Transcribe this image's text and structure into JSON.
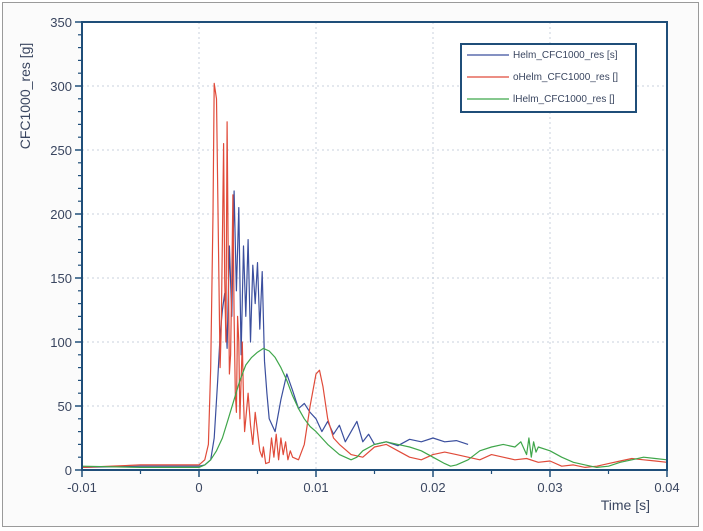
{
  "chart_data": {
    "type": "line",
    "xlabel": "Time [s]",
    "ylabel": "CFC1000_res [g]",
    "xlim": [
      -0.01,
      0.04
    ],
    "ylim": [
      0,
      350
    ],
    "x_ticks": [
      -0.01,
      0,
      0.01,
      0.02,
      0.03,
      0.04
    ],
    "x_tick_labels": [
      "-0.01",
      "0",
      "0.01",
      "0.02",
      "0.03",
      "0.04"
    ],
    "y_ticks": [
      0,
      50,
      100,
      150,
      200,
      250,
      300,
      350
    ],
    "y_tick_labels": [
      "0",
      "50",
      "100",
      "150",
      "200",
      "250",
      "300",
      "350"
    ],
    "grid": true,
    "legend_position": "top-right",
    "colors": {
      "axis": "#1f4e79",
      "grid": "#c8d2de",
      "text": "#3a4660"
    },
    "series": [
      {
        "name": "Helm_CFC1000_res [s]",
        "color": "#3b4f9e",
        "points": [
          [
            -0.01,
            2
          ],
          [
            -0.005,
            3
          ],
          [
            0.0,
            3
          ],
          [
            0.0005,
            4
          ],
          [
            0.001,
            8
          ],
          [
            0.0013,
            25
          ],
          [
            0.0016,
            70
          ],
          [
            0.0018,
            105
          ],
          [
            0.002,
            125
          ],
          [
            0.0022,
            138
          ],
          [
            0.0024,
            95
          ],
          [
            0.0026,
            175
          ],
          [
            0.0028,
            120
          ],
          [
            0.003,
            218
          ],
          [
            0.0032,
            140
          ],
          [
            0.0034,
            205
          ],
          [
            0.0036,
            90
          ],
          [
            0.0038,
            175
          ],
          [
            0.004,
            120
          ],
          [
            0.0042,
            180
          ],
          [
            0.0044,
            100
          ],
          [
            0.0046,
            160
          ],
          [
            0.0048,
            130
          ],
          [
            0.005,
            162
          ],
          [
            0.0052,
            110
          ],
          [
            0.0054,
            155
          ],
          [
            0.0056,
            85
          ],
          [
            0.0058,
            60
          ],
          [
            0.006,
            40
          ],
          [
            0.0065,
            30
          ],
          [
            0.007,
            55
          ],
          [
            0.0075,
            75
          ],
          [
            0.008,
            62
          ],
          [
            0.0085,
            48
          ],
          [
            0.009,
            52
          ],
          [
            0.0095,
            45
          ],
          [
            0.01,
            40
          ],
          [
            0.0105,
            30
          ],
          [
            0.011,
            38
          ],
          [
            0.0115,
            28
          ],
          [
            0.012,
            35
          ],
          [
            0.0125,
            22
          ],
          [
            0.013,
            30
          ],
          [
            0.0135,
            38
          ],
          [
            0.014,
            22
          ],
          [
            0.0145,
            28
          ],
          [
            0.015,
            20
          ],
          [
            0.016,
            22
          ],
          [
            0.017,
            19
          ],
          [
            0.018,
            24
          ],
          [
            0.019,
            22
          ],
          [
            0.02,
            25
          ],
          [
            0.021,
            22
          ],
          [
            0.022,
            23
          ],
          [
            0.023,
            20
          ]
        ]
      },
      {
        "name": "oHelm_CFC1000_res []",
        "color": "#e04b3a",
        "points": [
          [
            -0.01,
            2
          ],
          [
            -0.005,
            4
          ],
          [
            0.0,
            4
          ],
          [
            0.0005,
            8
          ],
          [
            0.0008,
            20
          ],
          [
            0.001,
            80
          ],
          [
            0.0012,
            200
          ],
          [
            0.0013,
            302
          ],
          [
            0.0015,
            290
          ],
          [
            0.0017,
            150
          ],
          [
            0.0018,
            80
          ],
          [
            0.0019,
            110
          ],
          [
            0.002,
            180
          ],
          [
            0.0021,
            255
          ],
          [
            0.0022,
            150
          ],
          [
            0.0023,
            100
          ],
          [
            0.0024,
            272
          ],
          [
            0.0025,
            160
          ],
          [
            0.0026,
            75
          ],
          [
            0.0027,
            90
          ],
          [
            0.0028,
            150
          ],
          [
            0.0029,
            215
          ],
          [
            0.003,
            120
          ],
          [
            0.0031,
            60
          ],
          [
            0.0032,
            45
          ],
          [
            0.0033,
            120
          ],
          [
            0.0034,
            100
          ],
          [
            0.0035,
            40
          ],
          [
            0.0036,
            70
          ],
          [
            0.0037,
            100
          ],
          [
            0.0038,
            55
          ],
          [
            0.0039,
            30
          ],
          [
            0.004,
            40
          ],
          [
            0.0042,
            60
          ],
          [
            0.0044,
            35
          ],
          [
            0.0046,
            20
          ],
          [
            0.0048,
            45
          ],
          [
            0.005,
            30
          ],
          [
            0.0052,
            15
          ],
          [
            0.0054,
            10
          ],
          [
            0.0055,
            18
          ],
          [
            0.0057,
            5
          ],
          [
            0.006,
            6
          ],
          [
            0.0062,
            25
          ],
          [
            0.0064,
            10
          ],
          [
            0.0066,
            28
          ],
          [
            0.0068,
            8
          ],
          [
            0.007,
            25
          ],
          [
            0.0072,
            12
          ],
          [
            0.0074,
            22
          ],
          [
            0.0076,
            8
          ],
          [
            0.0078,
            15
          ],
          [
            0.008,
            10
          ],
          [
            0.0085,
            8
          ],
          [
            0.009,
            20
          ],
          [
            0.0095,
            50
          ],
          [
            0.01,
            75
          ],
          [
            0.0103,
            78
          ],
          [
            0.0106,
            65
          ],
          [
            0.011,
            40
          ],
          [
            0.0115,
            25
          ],
          [
            0.012,
            20
          ],
          [
            0.013,
            12
          ],
          [
            0.014,
            10
          ],
          [
            0.015,
            18
          ],
          [
            0.016,
            20
          ],
          [
            0.017,
            15
          ],
          [
            0.018,
            10
          ],
          [
            0.019,
            8
          ],
          [
            0.02,
            12
          ],
          [
            0.021,
            14
          ],
          [
            0.022,
            12
          ],
          [
            0.023,
            10
          ],
          [
            0.024,
            8
          ],
          [
            0.025,
            12
          ],
          [
            0.026,
            10
          ],
          [
            0.027,
            8
          ],
          [
            0.028,
            9
          ],
          [
            0.029,
            6
          ],
          [
            0.03,
            7
          ],
          [
            0.031,
            3
          ],
          [
            0.032,
            4
          ],
          [
            0.033,
            2
          ],
          [
            0.034,
            3
          ],
          [
            0.035,
            5
          ],
          [
            0.036,
            7
          ],
          [
            0.037,
            9
          ],
          [
            0.038,
            8
          ],
          [
            0.039,
            7
          ],
          [
            0.04,
            6
          ]
        ]
      },
      {
        "name": "lHelm_CFC1000_res []",
        "color": "#3fa64a",
        "points": [
          [
            -0.01,
            3
          ],
          [
            -0.005,
            2
          ],
          [
            0.0,
            2
          ],
          [
            0.0005,
            4
          ],
          [
            0.001,
            8
          ],
          [
            0.0015,
            15
          ],
          [
            0.002,
            25
          ],
          [
            0.0025,
            40
          ],
          [
            0.003,
            55
          ],
          [
            0.0035,
            70
          ],
          [
            0.004,
            82
          ],
          [
            0.0045,
            88
          ],
          [
            0.005,
            92
          ],
          [
            0.0055,
            95
          ],
          [
            0.006,
            93
          ],
          [
            0.0065,
            88
          ],
          [
            0.007,
            80
          ],
          [
            0.0075,
            70
          ],
          [
            0.008,
            58
          ],
          [
            0.0085,
            48
          ],
          [
            0.009,
            40
          ],
          [
            0.0095,
            34
          ],
          [
            0.01,
            30
          ],
          [
            0.011,
            20
          ],
          [
            0.012,
            12
          ],
          [
            0.013,
            8
          ],
          [
            0.0135,
            10
          ],
          [
            0.014,
            15
          ],
          [
            0.015,
            20
          ],
          [
            0.016,
            22
          ],
          [
            0.017,
            20
          ],
          [
            0.018,
            18
          ],
          [
            0.019,
            15
          ],
          [
            0.02,
            10
          ],
          [
            0.021,
            5
          ],
          [
            0.0215,
            3
          ],
          [
            0.022,
            4
          ],
          [
            0.023,
            8
          ],
          [
            0.024,
            15
          ],
          [
            0.025,
            18
          ],
          [
            0.026,
            20
          ],
          [
            0.027,
            18
          ],
          [
            0.0275,
            22
          ],
          [
            0.028,
            12
          ],
          [
            0.0282,
            25
          ],
          [
            0.0284,
            10
          ],
          [
            0.0286,
            22
          ],
          [
            0.0288,
            14
          ],
          [
            0.029,
            18
          ],
          [
            0.03,
            15
          ],
          [
            0.031,
            10
          ],
          [
            0.032,
            6
          ],
          [
            0.033,
            4
          ],
          [
            0.034,
            2
          ],
          [
            0.035,
            3
          ],
          [
            0.036,
            6
          ],
          [
            0.037,
            8
          ],
          [
            0.038,
            10
          ],
          [
            0.039,
            9
          ],
          [
            0.04,
            8
          ]
        ]
      }
    ]
  }
}
